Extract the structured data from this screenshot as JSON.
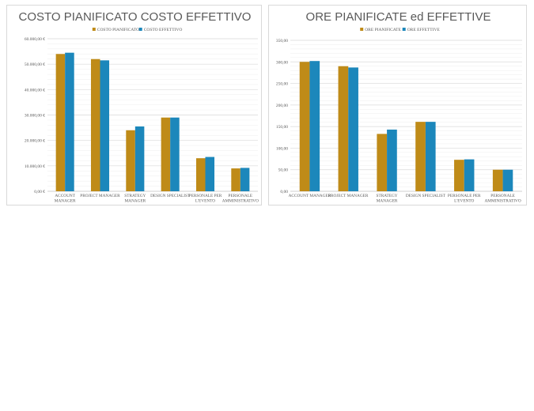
{
  "chart_data": [
    {
      "type": "bar",
      "title": "COSTO PIANIFICATO COSTO EFFETTIVO",
      "categories": [
        [
          "ACCOUNT",
          "MANAGER"
        ],
        [
          "PROJECT MANAGER"
        ],
        [
          "STRATEGY",
          "MANAGER"
        ],
        [
          "DESIGN SPECIALIST"
        ],
        [
          "PERSONALE PER",
          "L'EVENTO"
        ],
        [
          "PERSONALE",
          "AMMINISTRATIVO"
        ]
      ],
      "series": [
        {
          "name": "COSTO PIANIFICATO",
          "color": "#bf8b18",
          "values": [
            54000,
            52000,
            24000,
            29000,
            13000,
            9000
          ]
        },
        {
          "name": "COSTO EFFETTIVO",
          "color": "#1c87bb",
          "values": [
            54500,
            51500,
            25500,
            29000,
            13500,
            9200
          ]
        }
      ],
      "ylim": [
        0,
        60000
      ],
      "yticks": [
        "0,00 €",
        "10.000,00 €",
        "20.000,00 €",
        "30.000,00 €",
        "40.000,00 €",
        "50.000,00 €",
        "60.000,00 €"
      ],
      "grid": true,
      "legend": "top-center"
    },
    {
      "type": "bar",
      "title": "ORE PIANIFICATE ed EFFETTIVE",
      "categories": [
        [
          "ACCOUNT MANAGER"
        ],
        [
          "PROJECT MANAGER"
        ],
        [
          "STRATEGY",
          "MANAGER"
        ],
        [
          "DESIGN SPECIALIST"
        ],
        [
          "PERSONALE PER",
          "L'EVENTO"
        ],
        [
          "PERSONALE",
          "AMMINISTRATIVO"
        ]
      ],
      "series": [
        {
          "name": "ORE PIANIFICATE",
          "color": "#bf8b18",
          "values": [
            300,
            290,
            133,
            161,
            73,
            50
          ]
        },
        {
          "name": "ORE EFFETTIVE",
          "color": "#1c87bb",
          "values": [
            302,
            287,
            143,
            161,
            74,
            50
          ]
        }
      ],
      "ylim": [
        0,
        350
      ],
      "yticks": [
        "0,00",
        "50,00",
        "100,00",
        "150,00",
        "200,00",
        "250,00",
        "300,00",
        "350,00"
      ],
      "grid": true,
      "legend": "top-center"
    }
  ]
}
